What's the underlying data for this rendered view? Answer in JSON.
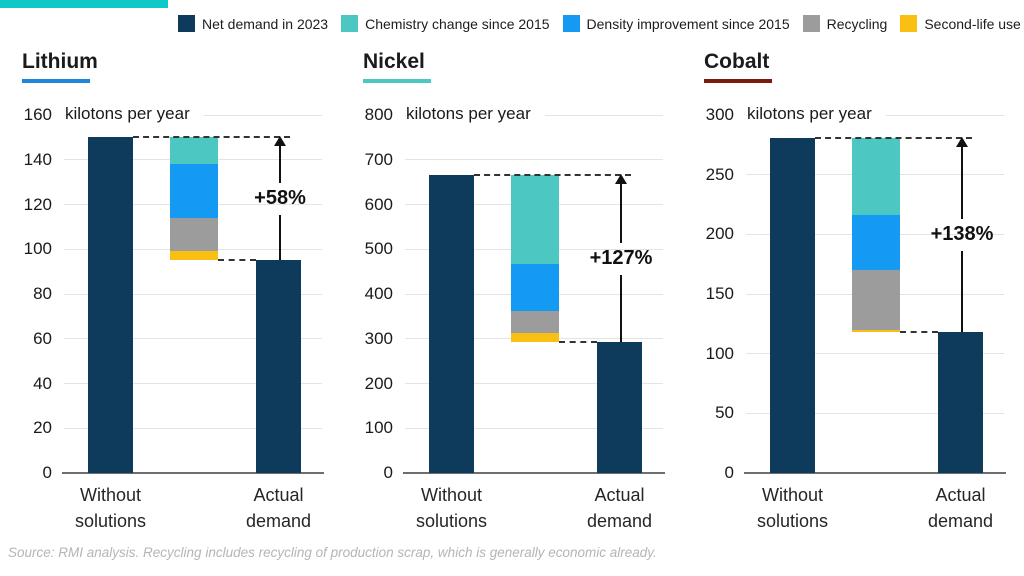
{
  "colors": {
    "net_demand": "#0e3a5c",
    "chemistry": "#4dc7c1",
    "density": "#149af2",
    "recycling": "#9c9c9c",
    "second_life": "#f9c013",
    "accent_bar": "#0fc9c9",
    "grid": "#e4e4e4",
    "baseline": "#6e6e6e",
    "annotation": "#111111"
  },
  "legend": {
    "items": [
      {
        "label": "Net demand in 2023",
        "color_key": "net_demand"
      },
      {
        "label": "Chemistry change since 2015",
        "color_key": "chemistry"
      },
      {
        "label": "Density improvement since 2015",
        "color_key": "density"
      },
      {
        "label": "Recycling",
        "color_key": "recycling"
      },
      {
        "label": "Second-life use",
        "color_key": "second_life"
      }
    ]
  },
  "source_note": "Source: RMI analysis. Recycling includes recycling of production scrap, which is generally economic already.",
  "chart_data": [
    {
      "type": "bar",
      "title": "Lithium",
      "title_underline_color": "#1f86dc",
      "unit_label": "kilotons per year",
      "ylim": [
        0,
        160
      ],
      "ytick_step": 20,
      "yticks": [
        0,
        20,
        40,
        60,
        80,
        100,
        120,
        140,
        160
      ],
      "grid": true,
      "categories": [
        "Without solutions",
        "Actual demand"
      ],
      "without_solutions": 150,
      "actual_demand": 95,
      "increase_label": "+58%",
      "solutions": [
        {
          "name": "Chemistry change since 2015",
          "color_key": "chemistry",
          "value": 12
        },
        {
          "name": "Density improvement since 2015",
          "color_key": "density",
          "value": 24
        },
        {
          "name": "Recycling",
          "color_key": "recycling",
          "value": 15
        },
        {
          "name": "Second-life use",
          "color_key": "second_life",
          "value": 4
        }
      ]
    },
    {
      "type": "bar",
      "title": "Nickel",
      "title_underline_color": "#4dc7c1",
      "unit_label": "kilotons per year",
      "ylim": [
        0,
        800
      ],
      "ytick_step": 100,
      "yticks": [
        0,
        100,
        200,
        300,
        400,
        500,
        600,
        700,
        800
      ],
      "grid": true,
      "categories": [
        "Without solutions",
        "Actual demand"
      ],
      "without_solutions": 665,
      "actual_demand": 293,
      "increase_label": "+127%",
      "solutions": [
        {
          "name": "Chemistry change since 2015",
          "color_key": "chemistry",
          "value": 197
        },
        {
          "name": "Density improvement since 2015",
          "color_key": "density",
          "value": 105
        },
        {
          "name": "Recycling",
          "color_key": "recycling",
          "value": 50
        },
        {
          "name": "Second-life use",
          "color_key": "second_life",
          "value": 20
        }
      ]
    },
    {
      "type": "bar",
      "title": "Cobalt",
      "title_underline_color": "#7a1a10",
      "unit_label": "kilotons per year",
      "ylim": [
        0,
        300
      ],
      "ytick_step": 50,
      "yticks": [
        0,
        50,
        100,
        150,
        200,
        250,
        300
      ],
      "grid": true,
      "categories": [
        "Without solutions",
        "Actual demand"
      ],
      "without_solutions": 281,
      "actual_demand": 118,
      "increase_label": "+138%",
      "solutions": [
        {
          "name": "Chemistry change since 2015",
          "color_key": "chemistry",
          "value": 65
        },
        {
          "name": "Density improvement since 2015",
          "color_key": "density",
          "value": 46
        },
        {
          "name": "Recycling",
          "color_key": "recycling",
          "value": 50
        },
        {
          "name": "Second-life use",
          "color_key": "second_life",
          "value": 2
        }
      ]
    }
  ]
}
